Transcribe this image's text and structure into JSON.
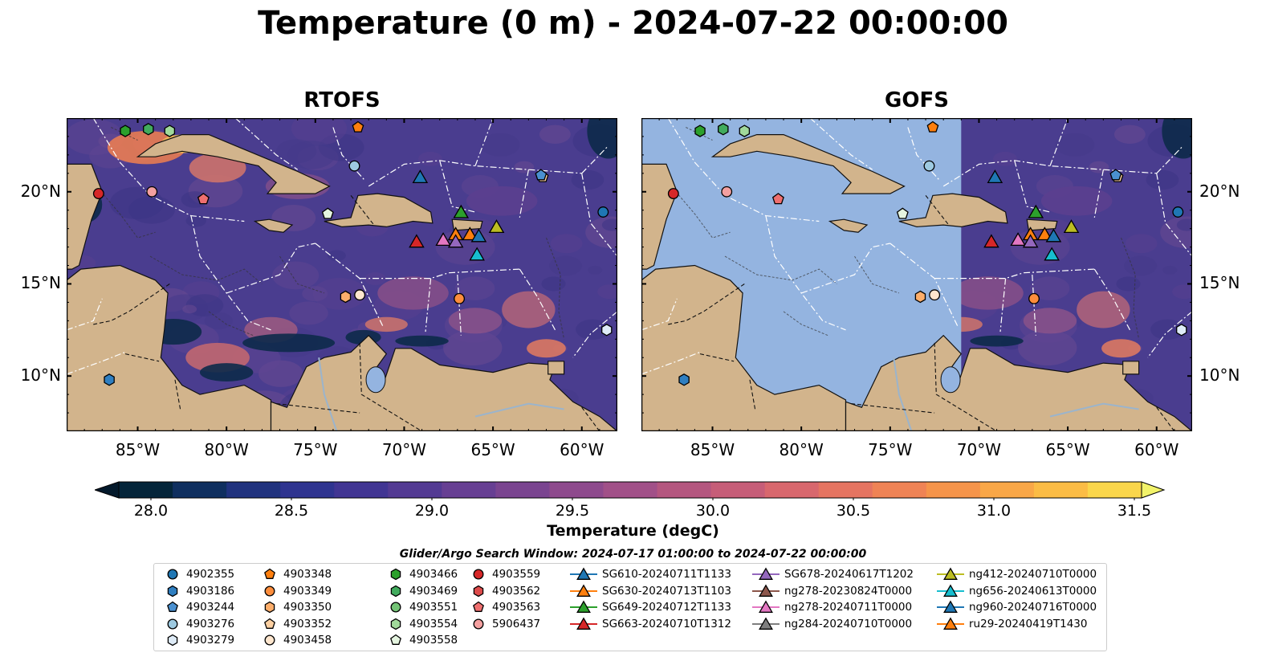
{
  "title": "Temperature (0 m) - 2024-07-22 00:00:00",
  "panels": [
    {
      "title": "RTOFS"
    },
    {
      "title": "GOFS"
    }
  ],
  "axes": {
    "lon_ticks": [
      "85°W",
      "80°W",
      "75°W",
      "70°W",
      "65°W",
      "60°W"
    ],
    "lat_ticks": [
      "20°N",
      "15°N",
      "10°N"
    ],
    "lon_range": [
      -89,
      -58
    ],
    "lat_range": [
      7,
      24
    ]
  },
  "colorbar": {
    "label": "Temperature (degC)",
    "ticks": [
      "28.0",
      "28.5",
      "29.0",
      "29.5",
      "30.0",
      "30.5",
      "31.0",
      "31.5"
    ],
    "range": [
      28.0,
      31.5
    ],
    "extend": "both",
    "colormap": "thermal"
  },
  "search_window": "Glider/Argo Search Window: 2024-07-17 01:00:00 to 2024-07-22 00:00:00",
  "colors": {
    "land": "#d2b48c",
    "gofs_mask": "#94b4e0",
    "ocean_base": "#4a3d8f",
    "boundary": "#ffffff"
  },
  "legend": [
    {
      "label": "4902355",
      "marker": "circle",
      "color": "#1f77b4"
    },
    {
      "label": "4903186",
      "marker": "hexagon",
      "color": "#2f7fc1"
    },
    {
      "label": "4903244",
      "marker": "pentagon",
      "color": "#4a90d0"
    },
    {
      "label": "4903276",
      "marker": "circle",
      "color": "#9ecae1"
    },
    {
      "label": "4903279",
      "marker": "hexagon",
      "color": "#deebf7"
    },
    {
      "label": "4903348",
      "marker": "pentagon",
      "color": "#ff7f0e"
    },
    {
      "label": "4903349",
      "marker": "circle",
      "color": "#fd8d3c"
    },
    {
      "label": "4903350",
      "marker": "hexagon",
      "color": "#fdae6b"
    },
    {
      "label": "4903352",
      "marker": "pentagon",
      "color": "#fdd0a2"
    },
    {
      "label": "4903458",
      "marker": "circle",
      "color": "#fee6ce"
    },
    {
      "label": "4903466",
      "marker": "hexagon",
      "color": "#2ca02c"
    },
    {
      "label": "4903469",
      "marker": "hexagon",
      "color": "#41ab5d"
    },
    {
      "label": "4903551",
      "marker": "circle",
      "color": "#74c476"
    },
    {
      "label": "4903554",
      "marker": "hexagon",
      "color": "#a1d99b"
    },
    {
      "label": "4903558",
      "marker": "pentagon",
      "color": "#e5f5e0"
    },
    {
      "label": "4903559",
      "marker": "circle",
      "color": "#d62728"
    },
    {
      "label": "4903562",
      "marker": "hexagon",
      "color": "#de4b4b"
    },
    {
      "label": "4903563",
      "marker": "pentagon",
      "color": "#ef6f6f"
    },
    {
      "label": "5906437",
      "marker": "circle",
      "color": "#f4a0a0"
    },
    {
      "label": "SG610-20240711T1133",
      "marker": "triangle",
      "color": "#1f77b4"
    },
    {
      "label": "SG630-20240713T1103",
      "marker": "triangle",
      "color": "#ff7f0e"
    },
    {
      "label": "SG649-20240712T1133",
      "marker": "triangle",
      "color": "#2ca02c"
    },
    {
      "label": "SG663-20240710T1312",
      "marker": "triangle",
      "color": "#d62728"
    },
    {
      "label": "SG678-20240617T1202",
      "marker": "triangle",
      "color": "#9467bd"
    },
    {
      "label": "ng278-20230824T0000",
      "marker": "triangle",
      "color": "#8c564b"
    },
    {
      "label": "ng278-20240711T0000",
      "marker": "triangle",
      "color": "#e377c2"
    },
    {
      "label": "ng284-20240710T0000",
      "marker": "triangle",
      "color": "#7f7f7f"
    },
    {
      "label": "ng412-20240710T0000",
      "marker": "triangle",
      "color": "#bcbd22"
    },
    {
      "label": "ng656-20240613T0000",
      "marker": "triangle",
      "color": "#17becf"
    },
    {
      "label": "ng960-20240716T0000",
      "marker": "triangle",
      "color": "#1f77b4"
    },
    {
      "label": "ru29-20240419T1430",
      "marker": "triangle",
      "color": "#ff7f0e"
    }
  ],
  "markers": [
    {
      "name": "4903466",
      "lon": -85.7,
      "lat": 23.3
    },
    {
      "name": "4903469",
      "lon": -84.4,
      "lat": 23.4
    },
    {
      "name": "4903554",
      "lon": -83.2,
      "lat": 23.3
    },
    {
      "name": "4903348",
      "lon": -72.6,
      "lat": 23.5
    },
    {
      "name": "4903276",
      "lon": -72.8,
      "lat": 21.4
    },
    {
      "name": "4903352",
      "lon": -62.2,
      "lat": 20.8
    },
    {
      "name": "4903244",
      "lon": -62.3,
      "lat": 20.9
    },
    {
      "name": "4903559",
      "lon": -87.2,
      "lat": 19.9
    },
    {
      "name": "5906437",
      "lon": -84.2,
      "lat": 20.0
    },
    {
      "name": "4903563",
      "lon": -81.3,
      "lat": 19.6
    },
    {
      "name": "4903558",
      "lon": -74.3,
      "lat": 18.8
    },
    {
      "name": "4902355",
      "lon": -58.8,
      "lat": 18.9
    },
    {
      "name": "4903350",
      "lon": -73.3,
      "lat": 14.3
    },
    {
      "name": "4903458",
      "lon": -72.5,
      "lat": 14.4
    },
    {
      "name": "4903349",
      "lon": -66.9,
      "lat": 14.2
    },
    {
      "name": "4903279",
      "lon": -58.6,
      "lat": 12.5
    },
    {
      "name": "4903186",
      "lon": -86.6,
      "lat": 9.8
    },
    {
      "name": "SG610-20240711T1133",
      "lon": -69.1,
      "lat": 20.8
    },
    {
      "name": "SG649-20240712T1133",
      "lon": -66.8,
      "lat": 18.9
    },
    {
      "name": "ng412-20240710T0000",
      "lon": -64.8,
      "lat": 18.1
    },
    {
      "name": "SG630-20240713T1103",
      "lon": -67.1,
      "lat": 17.7
    },
    {
      "name": "ru29-20240419T1430",
      "lon": -66.3,
      "lat": 17.7
    },
    {
      "name": "ng960-20240716T0000",
      "lon": -65.8,
      "lat": 17.6
    },
    {
      "name": "ng278-20240711T0000",
      "lon": -67.8,
      "lat": 17.4
    },
    {
      "name": "SG678-20240617T1202",
      "lon": -67.1,
      "lat": 17.3
    },
    {
      "name": "SG663-20240710T1312",
      "lon": -69.3,
      "lat": 17.3
    },
    {
      "name": "ng656-20240613T0000",
      "lon": -65.9,
      "lat": 16.6
    }
  ]
}
